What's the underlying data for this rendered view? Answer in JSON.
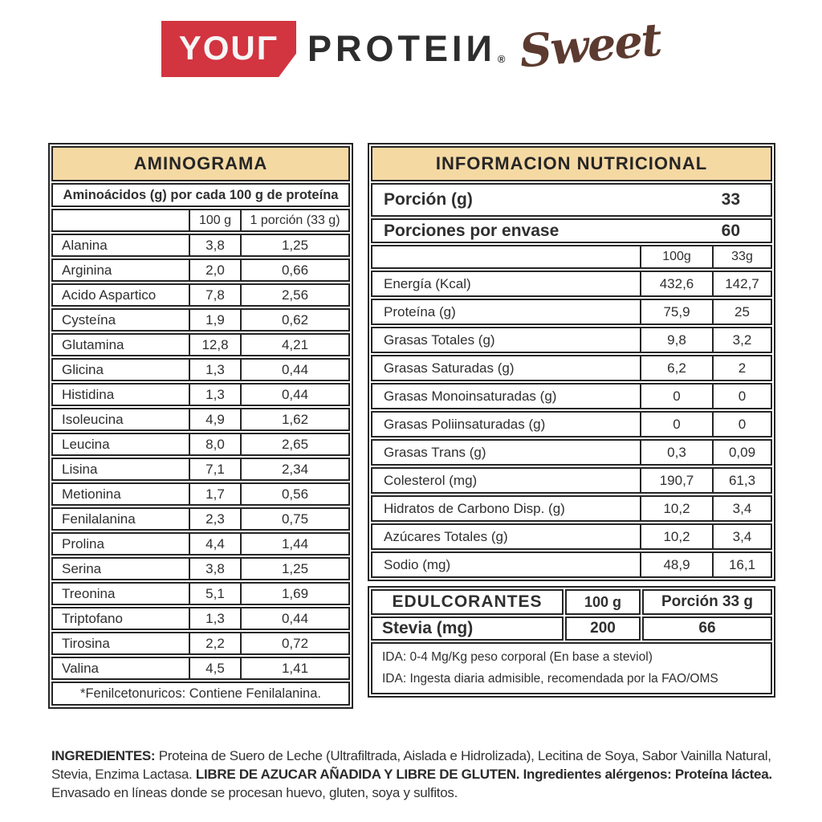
{
  "logo": {
    "your": "YOUΓ",
    "protein": "PROTEIИ",
    "registered": "®",
    "sweet": "Sweet",
    "colors": {
      "red": "#d23440",
      "dark": "#2d2d2d",
      "brown": "#5c3a2f"
    }
  },
  "colors": {
    "tan_header": "#f5d9a3",
    "border": "#262626"
  },
  "aminograma": {
    "title": "AMINOGRAMA",
    "subtitle": "Aminoácidos (g) por cada 100 g de proteína",
    "col_100g": "100 g",
    "col_portion": "1 porción (33 g)",
    "rows": [
      {
        "name": "Alanina",
        "per100": "3,8",
        "portion": "1,25"
      },
      {
        "name": "Arginina",
        "per100": "2,0",
        "portion": "0,66"
      },
      {
        "name": "Acido Aspartico",
        "per100": "7,8",
        "portion": "2,56"
      },
      {
        "name": "Cysteína",
        "per100": "1,9",
        "portion": "0,62"
      },
      {
        "name": "Glutamina",
        "per100": "12,8",
        "portion": "4,21"
      },
      {
        "name": "Glicina",
        "per100": "1,3",
        "portion": "0,44"
      },
      {
        "name": "Histidina",
        "per100": "1,3",
        "portion": "0,44"
      },
      {
        "name": "Isoleucina",
        "per100": "4,9",
        "portion": "1,62"
      },
      {
        "name": "Leucina",
        "per100": "8,0",
        "portion": "2,65"
      },
      {
        "name": "Lisina",
        "per100": "7,1",
        "portion": "2,34"
      },
      {
        "name": "Metionina",
        "per100": "1,7",
        "portion": "0,56"
      },
      {
        "name": "Fenilalanina",
        "per100": "2,3",
        "portion": "0,75"
      },
      {
        "name": "Prolina",
        "per100": "4,4",
        "portion": "1,44"
      },
      {
        "name": "Serina",
        "per100": "3,8",
        "portion": "1,25"
      },
      {
        "name": "Treonina",
        "per100": "5,1",
        "portion": "1,69"
      },
      {
        "name": "Triptofano",
        "per100": "1,3",
        "portion": "0,44"
      },
      {
        "name": "Tirosina",
        "per100": "2,2",
        "portion": "0,72"
      },
      {
        "name": "Valina",
        "per100": "4,5",
        "portion": "1,41"
      }
    ],
    "footnote": "*Fenilcetonuricos: Contiene Fenilalanina."
  },
  "nutrition": {
    "title": "INFORMACION NUTRICIONAL",
    "portion_label": "Porción (g)",
    "portion_value": "33",
    "servings_label": "Porciones por envase",
    "servings_value": "60",
    "col_100g": "100g",
    "col_33g": "33g",
    "rows": [
      {
        "name": "Energía (Kcal)",
        "per100": "432,6",
        "per33": "142,7"
      },
      {
        "name": "Proteína (g)",
        "per100": "75,9",
        "per33": "25"
      },
      {
        "name": "Grasas Totales (g)",
        "per100": "9,8",
        "per33": "3,2"
      },
      {
        "name": "Grasas Saturadas (g)",
        "per100": "6,2",
        "per33": "2"
      },
      {
        "name": "Grasas Monoinsaturadas (g)",
        "per100": "0",
        "per33": "0"
      },
      {
        "name": "Grasas Poliinsaturadas (g)",
        "per100": "0",
        "per33": "0"
      },
      {
        "name": "Grasas Trans (g)",
        "per100": "0,3",
        "per33": "0,09"
      },
      {
        "name": "Colesterol (mg)",
        "per100": "190,7",
        "per33": "61,3"
      },
      {
        "name": "Hidratos de Carbono Disp. (g)",
        "per100": "10,2",
        "per33": "3,4"
      },
      {
        "name": "Azúcares Totales (g)",
        "per100": "10,2",
        "per33": "3,4"
      },
      {
        "name": "Sodio (mg)",
        "per100": "48,9",
        "per33": "16,1"
      }
    ]
  },
  "edulcorantes": {
    "title": "EDULCORANTES",
    "col_100g": "100 g",
    "col_portion": "Porción 33 g",
    "rows": [
      {
        "name": "Stevia (mg)",
        "per100": "200",
        "portion": "66"
      }
    ],
    "notes": [
      {
        "text": "IDA: 0-4 Mg/Kg peso corporal (En base a steviol)"
      },
      {
        "text": "IDA: Ingesta diaria admisible, recomendada por la FAO/OMS"
      }
    ]
  },
  "ingredients": {
    "label": "INGREDIENTES:",
    "part1": " Proteina de Suero de Leche (Ultrafiltrada, Aislada e Hidrolizada), Lecitina de Soya, Sabor Vainilla Natural, Stevia, Enzima Lactasa. ",
    "bold": "LIBRE DE AZUCAR AÑADIDA Y LIBRE DE GLUTEN. Ingredientes alérgenos: Proteína láctea.",
    "part2": " Envasado en líneas donde se procesan huevo, gluten, soya y sulfitos."
  }
}
